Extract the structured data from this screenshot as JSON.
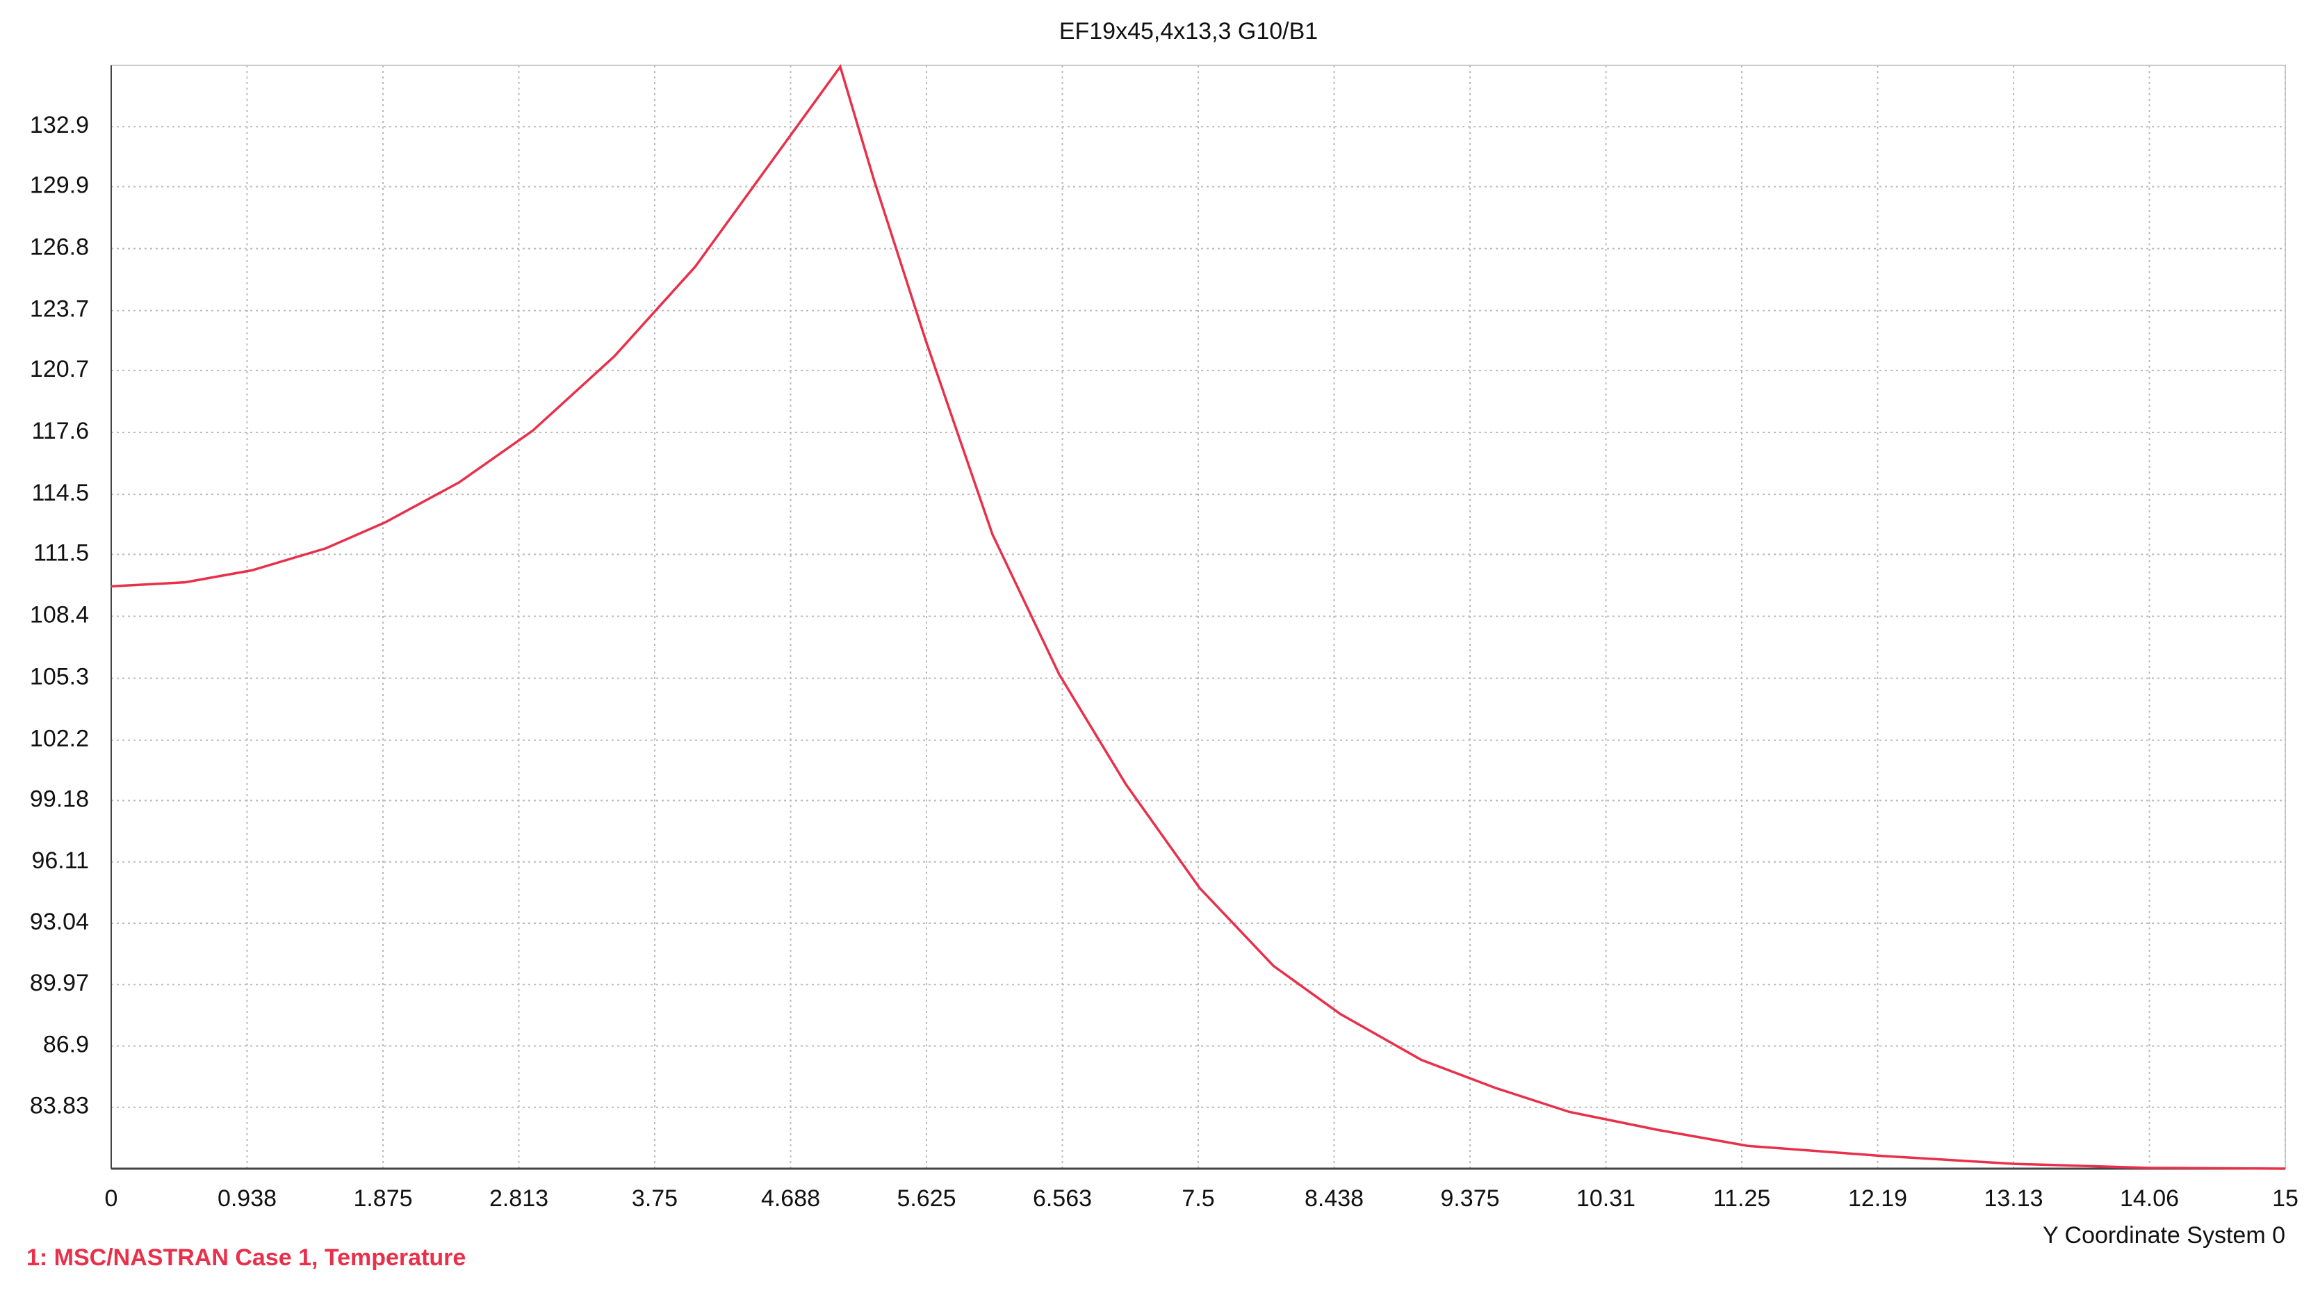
{
  "chart_data": {
    "type": "line",
    "title": "EF19x45,4x13,3  G10/B1",
    "x_label": "Y Coordinate System 0",
    "x": [
      0,
      0.51,
      0.97,
      1.48,
      1.89,
      2.4,
      2.91,
      3.47,
      4.03,
      4.55,
      5.03,
      5.26,
      5.62,
      6.08,
      6.54,
      7.0,
      7.51,
      8.02,
      8.48,
      9.04,
      9.55,
      10.06,
      10.67,
      11.29,
      12.21,
      13.13,
      14.05,
      15
    ],
    "series": [
      {
        "name": "1: MSC/NASTRAN Case 1, Temperature",
        "color": "#e8304a",
        "values": [
          109.9,
          110.1,
          110.7,
          111.8,
          113.1,
          115.1,
          117.7,
          121.4,
          125.9,
          131.1,
          135.9,
          130.3,
          122.2,
          112.5,
          105.5,
          100.0,
          94.8,
          90.9,
          88.5,
          86.2,
          84.8,
          83.6,
          82.7,
          81.9,
          81.4,
          81.0,
          80.8,
          80.76
        ]
      }
    ],
    "xlim": [
      0,
      15
    ],
    "xticks": [
      0,
      {
        "value": 0.9375,
        "label": "0.938"
      },
      1.875,
      {
        "value": 2.8125,
        "label": "2.813"
      },
      3.75,
      {
        "value": 4.6875,
        "label": "4.688"
      },
      5.625,
      {
        "value": 6.5625,
        "label": "6.563"
      },
      7.5,
      {
        "value": 8.4375,
        "label": "8.438"
      },
      9.375,
      {
        "value": 10.3125,
        "label": "10.31"
      },
      11.25,
      {
        "value": 12.1875,
        "label": "12.19"
      },
      {
        "value": 13.125,
        "label": "13.13"
      },
      {
        "value": 14.0625,
        "label": "14.06"
      },
      15
    ],
    "ylim": [
      80.76,
      135.97
    ],
    "yticks": [
      83.83,
      86.9,
      89.97,
      93.04,
      96.11,
      99.18,
      102.2,
      105.3,
      108.4,
      111.5,
      114.5,
      117.6,
      120.7,
      123.7,
      126.8,
      129.9,
      132.9
    ],
    "grid": true
  }
}
